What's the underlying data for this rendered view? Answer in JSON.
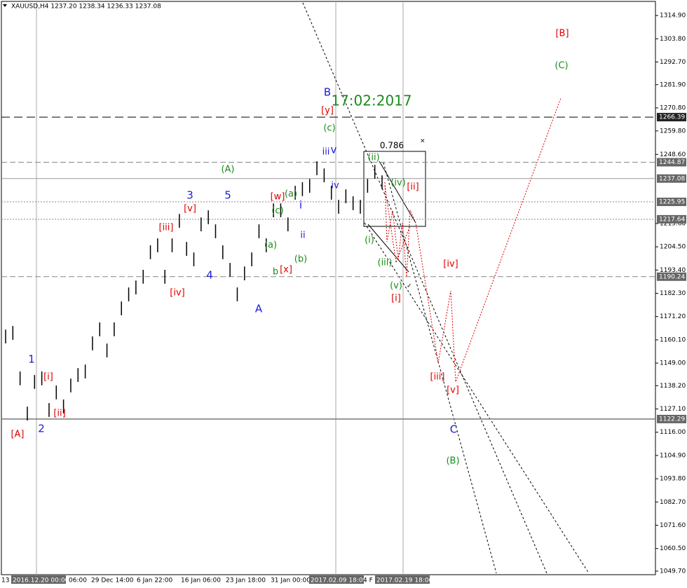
{
  "chart_data": {
    "type": "ohlc",
    "title": "XAUUSD,H4  1237.20 1238.34 1236.33 1237.08",
    "ylim": [
      1048.0,
      1322.3
    ],
    "yticks": [
      {
        "value": 1314.9,
        "label": "1314.90"
      },
      {
        "value": 1303.8,
        "label": "1303.80"
      },
      {
        "value": 1292.7,
        "label": "1292.70"
      },
      {
        "value": 1281.9,
        "label": "1281.90"
      },
      {
        "value": 1270.8,
        "label": "1270.80"
      },
      {
        "value": 1259.8,
        "label": "1259.80"
      },
      {
        "value": 1248.6,
        "label": "1248.60"
      },
      {
        "value": 1215.6,
        "label": "1215.60"
      },
      {
        "value": 1204.5,
        "label": "1204.50"
      },
      {
        "value": 1193.4,
        "label": "1193.40"
      },
      {
        "value": 1182.3,
        "label": "1182.30"
      },
      {
        "value": 1171.2,
        "label": "1171.20"
      },
      {
        "value": 1160.1,
        "label": "1160.10"
      },
      {
        "value": 1149.0,
        "label": "1149.00"
      },
      {
        "value": 1138.2,
        "label": "1138.20"
      },
      {
        "value": 1127.1,
        "label": "1127.10"
      },
      {
        "value": 1116.0,
        "label": "1116.00"
      },
      {
        "value": 1104.9,
        "label": "1104.90"
      },
      {
        "value": 1093.8,
        "label": "1093.80"
      },
      {
        "value": 1082.7,
        "label": "1082.70"
      },
      {
        "value": 1071.6,
        "label": "1071.60"
      },
      {
        "value": 1060.5,
        "label": "1060.50"
      },
      {
        "value": 1049.7,
        "label": "1049.70"
      }
    ],
    "levels": [
      {
        "value": 1266.39,
        "label": "1266.39",
        "style": "longdash"
      },
      {
        "value": 1244.87,
        "label": "1244.87",
        "style": "dash"
      },
      {
        "value": 1237.08,
        "label": "1237.08",
        "style": "solid"
      },
      {
        "value": 1225.95,
        "label": "1225.95",
        "style": "dot"
      },
      {
        "value": 1217.64,
        "label": "1217.64",
        "style": "dot"
      },
      {
        "value": 1190.24,
        "label": "1190.24",
        "style": "dash"
      },
      {
        "value": 1122.29,
        "label": "1122.29",
        "style": "solid"
      }
    ],
    "high": [
      1165.0,
      1166.7,
      1145.0,
      1128.2,
      1143.3,
      1145.0,
      1129.9,
      1138.3,
      1131.6,
      1141.6,
      1146.6,
      1148.3,
      1161.7,
      1168.4,
      1158.3,
      1168.4,
      1178.4,
      1185.1,
      1188.4,
      1193.5,
      1205.2,
      1208.5,
      1193.5,
      1208.5,
      1220.2,
      1206.8,
      1201.8,
      1218.5,
      1221.9,
      1215.2,
      1205.2,
      1196.8,
      1185.1,
      1195.1,
      1201.8,
      1215.2,
      1208.5,
      1225.2,
      1225.2,
      1218.5,
      1233.6,
      1235.3,
      1236.9,
      1245.3,
      1241.9,
      1233.6,
      1226.9,
      1231.9,
      1228.6,
      1226.9,
      1236.9,
      1243.6,
      1238.6
    ],
    "low": [
      1158.4,
      1160.1,
      1138.4,
      1121.6,
      1136.7,
      1138.4,
      1123.3,
      1131.7,
      1125.0,
      1135.0,
      1140.0,
      1141.7,
      1155.1,
      1161.8,
      1151.7,
      1161.8,
      1171.8,
      1178.5,
      1181.8,
      1186.9,
      1198.6,
      1201.9,
      1186.9,
      1201.9,
      1213.6,
      1200.2,
      1195.2,
      1211.9,
      1215.3,
      1208.6,
      1198.6,
      1190.2,
      1178.5,
      1188.5,
      1195.2,
      1208.6,
      1201.9,
      1218.6,
      1218.6,
      1211.9,
      1227.0,
      1228.7,
      1230.3,
      1238.7,
      1235.3,
      1227.0,
      1220.3,
      1225.3,
      1222.0,
      1220.3,
      1230.3,
      1237.0,
      1232.0
    ],
    "x_labels": [
      {
        "label": "13",
        "highlight": false
      },
      {
        "label": "2016.12.20 00:00",
        "highlight": true
      },
      {
        "label": "06:00",
        "highlight": false
      },
      {
        "label": "29 Dec 14:00",
        "highlight": false
      },
      {
        "label": "6 Jan 22:00",
        "highlight": false
      },
      {
        "label": "16 Jan 06:00",
        "highlight": false
      },
      {
        "label": "23 Jan 18:00",
        "highlight": false
      },
      {
        "label": "31 Jan 00:00",
        "highlight": false
      },
      {
        "label": "2017.02.09 18:00",
        "highlight": true
      },
      {
        "label": "4 F",
        "highlight": false
      },
      {
        "label": "2017.02.19 18:00",
        "highlight": true
      }
    ],
    "annotations": [
      {
        "text": "1",
        "color": "#1a1adc"
      },
      {
        "text": "2",
        "color": "#1a1adc"
      },
      {
        "text": "[A]",
        "color": "#e00000"
      },
      {
        "text": "[i]",
        "color": "#e00000"
      },
      {
        "text": "[ii]",
        "color": "#e00000"
      },
      {
        "text": "[iii]",
        "color": "#e00000"
      },
      {
        "text": "[iv]",
        "color": "#e00000"
      },
      {
        "text": "[v]",
        "color": "#e00000"
      },
      {
        "text": "3",
        "color": "#1a1adc"
      },
      {
        "text": "4",
        "color": "#1a1adc"
      },
      {
        "text": "5",
        "color": "#1a1adc"
      },
      {
        "text": "(A)",
        "color": "#1a8c1a"
      },
      {
        "text": "A",
        "color": "#1a1adc"
      },
      {
        "text": "(a)",
        "color": "#1a8c1a"
      },
      {
        "text": "b",
        "color": "#1a8c1a"
      },
      {
        "text": "(b)",
        "color": "#1a8c1a"
      },
      {
        "text": "(c)",
        "color": "#1a8c1a"
      },
      {
        "text": "[w]",
        "color": "#e00000"
      },
      {
        "text": "(a)",
        "color": "#1a8c1a"
      },
      {
        "text": "[x]",
        "color": "#e00000"
      },
      {
        "text": "i",
        "color": "#1a1adc"
      },
      {
        "text": "ii",
        "color": "#1a1adc"
      },
      {
        "text": "iii",
        "color": "#1a1adc"
      },
      {
        "text": "v",
        "color": "#1a1adc"
      },
      {
        "text": "iv",
        "color": "#1a1adc"
      },
      {
        "text": "(c)",
        "color": "#1a8c1a"
      },
      {
        "text": "[y]",
        "color": "#e00000"
      },
      {
        "text": "B",
        "color": "#1a1adc"
      },
      {
        "text": "17:02:2017",
        "color": "#1a8c1a"
      },
      {
        "text": "0.786",
        "color": "#000000"
      },
      {
        "text": "(ii)",
        "color": "#1a8c1a"
      },
      {
        "text": "(iv)",
        "color": "#1a8c1a"
      },
      {
        "text": "[ii]",
        "color": "#e00000"
      },
      {
        "text": "(i)",
        "color": "#1a8c1a"
      },
      {
        "text": "(iii)",
        "color": "#1a8c1a"
      },
      {
        "text": "(v)",
        "color": "#1a8c1a"
      },
      {
        "text": "[i]",
        "color": "#e00000"
      },
      {
        "text": "[iv]",
        "color": "#e00000"
      },
      {
        "text": "[iii]",
        "color": "#e00000"
      },
      {
        "text": "[v]",
        "color": "#e00000"
      },
      {
        "text": "C",
        "color": "#1a1adc"
      },
      {
        "text": "(B)",
        "color": "#1a8c1a"
      },
      {
        "text": "[B]",
        "color": "#e00000"
      },
      {
        "text": "(C)",
        "color": "#1a8c1a"
      }
    ]
  }
}
